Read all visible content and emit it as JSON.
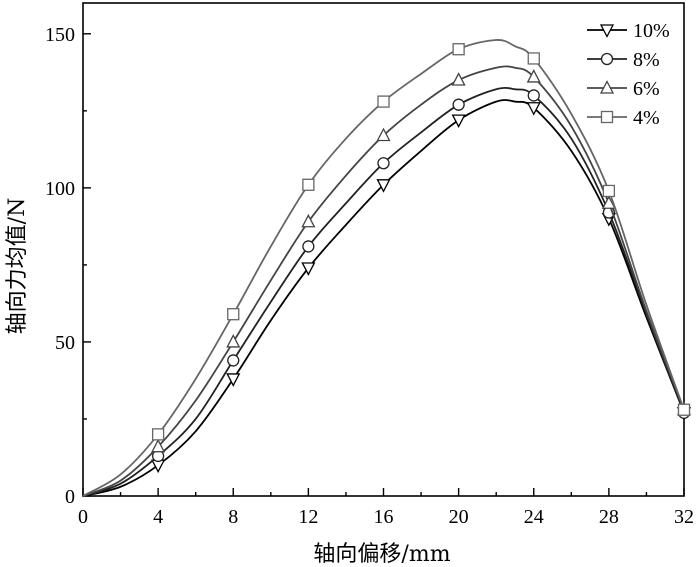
{
  "chart_data": {
    "type": "line",
    "title": "",
    "xlabel": "轴向偏移/mm",
    "ylabel": "轴向力均值/N",
    "xlim": [
      0,
      32
    ],
    "ylim": [
      0,
      160
    ],
    "xticks": [
      0,
      4,
      8,
      12,
      16,
      20,
      24,
      28,
      32
    ],
    "yticks": [
      0,
      50,
      100,
      150
    ],
    "grid": false,
    "legend_position": "top-right",
    "series": [
      {
        "name": "10%",
        "marker": "triangle-down",
        "color": "#000000",
        "x": [
          0,
          2,
          4,
          6,
          8,
          10,
          12,
          14,
          16,
          18,
          20,
          22,
          23,
          24,
          26,
          28,
          30,
          32
        ],
        "y": [
          0,
          3,
          10,
          21,
          38,
          57,
          74,
          88,
          101,
          112,
          122,
          128,
          128,
          126,
          112,
          90,
          58,
          27
        ]
      },
      {
        "name": "8%",
        "marker": "circle",
        "color": "#222222",
        "x": [
          0,
          2,
          4,
          6,
          8,
          10,
          12,
          14,
          16,
          18,
          20,
          22,
          23,
          24,
          26,
          28,
          30,
          32
        ],
        "y": [
          0,
          4,
          13,
          25,
          44,
          63,
          81,
          95,
          108,
          118,
          127,
          132,
          132,
          130,
          116,
          92,
          59,
          27
        ]
      },
      {
        "name": "6%",
        "marker": "triangle-up",
        "color": "#444444",
        "x": [
          0,
          2,
          4,
          6,
          8,
          10,
          12,
          14,
          16,
          18,
          20,
          22,
          23,
          24,
          26,
          28,
          30,
          32
        ],
        "y": [
          0,
          5,
          16,
          31,
          50,
          70,
          89,
          104,
          117,
          127,
          135,
          139,
          139,
          136,
          120,
          95,
          60,
          28
        ]
      },
      {
        "name": "4%",
        "marker": "square",
        "color": "#666666",
        "x": [
          0,
          2,
          4,
          6,
          8,
          10,
          12,
          14,
          16,
          18,
          20,
          22,
          23,
          24,
          26,
          28,
          30,
          32
        ],
        "y": [
          0,
          7,
          20,
          38,
          59,
          81,
          101,
          116,
          128,
          137,
          145,
          148,
          146,
          142,
          124,
          99,
          62,
          28
        ]
      }
    ]
  }
}
